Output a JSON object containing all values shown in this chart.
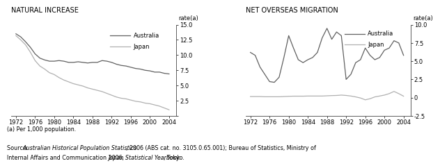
{
  "title_left": "NATURAL INCREASE",
  "title_right": "NET OVERSEAS MIGRATION",
  "ylabel": "rate(a)",
  "footnote1": "(a) Per 1,000 population.",
  "footnote2_parts": [
    {
      "text": "Source: ",
      "style": "normal"
    },
    {
      "text": "Australian Historical Population Statistics",
      "style": "italic"
    },
    {
      "text": ", 2006 (ABS cat. no. 3105.0.65.001); Bureau of Statistics, Ministry of Internal Affairs and Communication 2006, ",
      "style": "normal"
    },
    {
      "text": "Japan Statistical Yearbook",
      "style": "italic"
    },
    {
      "text": ", Tokyo.",
      "style": "normal"
    }
  ],
  "years": [
    1972,
    1973,
    1974,
    1975,
    1976,
    1977,
    1978,
    1979,
    1980,
    1981,
    1982,
    1983,
    1984,
    1985,
    1986,
    1987,
    1988,
    1989,
    1990,
    1991,
    1992,
    1993,
    1994,
    1995,
    1996,
    1997,
    1998,
    1999,
    2000,
    2001,
    2002,
    2003,
    2004
  ],
  "ni_australia": [
    13.5,
    13.0,
    12.2,
    11.3,
    10.2,
    9.5,
    9.2,
    9.0,
    9.0,
    9.1,
    9.0,
    8.8,
    8.8,
    8.9,
    8.8,
    8.7,
    8.8,
    8.8,
    9.1,
    9.0,
    8.8,
    8.5,
    8.3,
    8.2,
    8.0,
    7.8,
    7.7,
    7.5,
    7.4,
    7.2,
    7.2,
    7.0,
    6.9
  ],
  "ni_japan": [
    13.2,
    12.5,
    11.7,
    10.5,
    9.1,
    8.2,
    7.7,
    7.1,
    6.8,
    6.3,
    5.9,
    5.6,
    5.3,
    5.1,
    4.9,
    4.6,
    4.4,
    4.2,
    4.0,
    3.7,
    3.4,
    3.1,
    2.9,
    2.8,
    2.6,
    2.4,
    2.3,
    2.1,
    2.0,
    1.8,
    1.6,
    1.3,
    1.0
  ],
  "nom_australia": [
    6.2,
    5.8,
    4.2,
    3.2,
    2.2,
    2.1,
    2.8,
    5.5,
    8.5,
    6.8,
    5.2,
    4.8,
    5.2,
    5.5,
    6.2,
    8.2,
    9.5,
    8.0,
    9.0,
    8.5,
    2.5,
    3.2,
    4.8,
    5.2,
    6.8,
    5.8,
    5.2,
    5.5,
    6.5,
    6.8,
    7.8,
    7.5,
    5.8
  ],
  "nom_japan": [
    0.15,
    0.15,
    0.15,
    0.12,
    0.12,
    0.12,
    0.12,
    0.15,
    0.18,
    0.2,
    0.2,
    0.2,
    0.22,
    0.22,
    0.22,
    0.22,
    0.25,
    0.28,
    0.3,
    0.35,
    0.3,
    0.22,
    0.1,
    -0.05,
    -0.3,
    -0.15,
    0.1,
    0.22,
    0.35,
    0.55,
    0.85,
    0.55,
    0.2
  ],
  "australia_color": "#606060",
  "japan_color": "#b0b0b0",
  "background_color": "#ffffff",
  "xlim": [
    1971,
    2005.5
  ],
  "xticks": [
    1972,
    1976,
    1980,
    1984,
    1988,
    1992,
    1996,
    2000,
    2004
  ],
  "ni_ylim": [
    0,
    15.0
  ],
  "ni_yticks": [
    0,
    2.5,
    5.0,
    7.5,
    10.0,
    12.5,
    15.0
  ],
  "nom_ylim": [
    -2.5,
    10.0
  ],
  "nom_yticks": [
    -2.5,
    0,
    2.5,
    5.0,
    7.5,
    10.0
  ],
  "legend_aus": "Australia",
  "legend_jpn": "Japan"
}
